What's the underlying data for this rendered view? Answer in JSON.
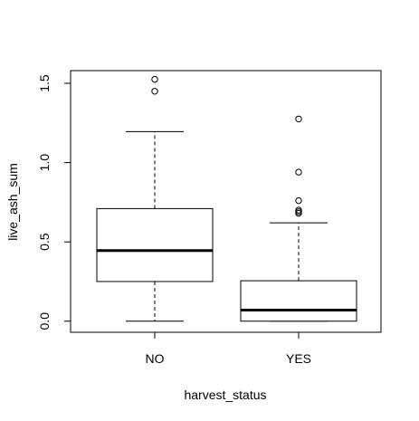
{
  "chart_data": {
    "type": "boxplot",
    "title": "",
    "xlabel": "harvest_status",
    "ylabel": "live_ash_sum",
    "categories": [
      "NO",
      "YES"
    ],
    "ylim": [
      -0.07,
      1.58
    ],
    "yticks": [
      0.0,
      0.5,
      1.0,
      1.5
    ],
    "ytick_labels": [
      "0.0",
      "0.5",
      "1.0",
      "1.5"
    ],
    "grid": false,
    "boxes": [
      {
        "category": "NO",
        "whisker_low": 0.0,
        "q1": 0.25,
        "median": 0.445,
        "q3": 0.71,
        "whisker_high": 1.195,
        "outliers": [
          1.45,
          1.525
        ]
      },
      {
        "category": "YES",
        "whisker_low": 0.0,
        "q1": 0.0,
        "median": 0.07,
        "q3": 0.255,
        "whisker_high": 0.62,
        "outliers": [
          0.68,
          0.69,
          0.7,
          0.76,
          0.94,
          1.275
        ]
      }
    ]
  }
}
